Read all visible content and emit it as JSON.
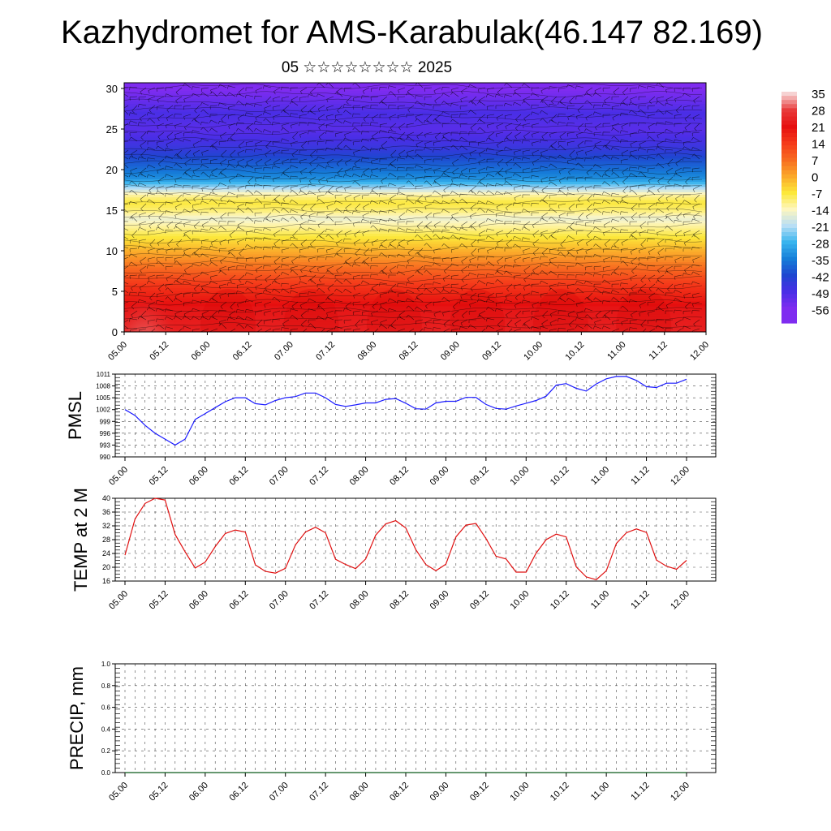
{
  "header": {
    "title": "Kazhydromet for AMS-Karabulak(46.147 82.169)",
    "subtitle": "05 ☆☆☆☆☆☆☆☆ 2025"
  },
  "chart_data": [
    {
      "type": "heatmap",
      "name": "vertical-section",
      "title": "Kazhydromet for AMS-Karabulak(46.147 82.169)",
      "subtitle": "05 ☆☆☆☆☆☆☆☆ 2025",
      "xlabel": "",
      "ylabel": "",
      "x_ticks": [
        "05.00",
        "05.12",
        "06.00",
        "06.12",
        "07.00",
        "07.12",
        "08.00",
        "08.12",
        "09.00",
        "09.12",
        "10.00",
        "10.12",
        "11.00",
        "11.12",
        "12.00"
      ],
      "y_ticks": [
        0,
        5,
        10,
        15,
        20,
        25,
        30
      ],
      "ylim": [
        0,
        30.7
      ],
      "temperature_profile": {
        "height": [
          0,
          3,
          6,
          9,
          12,
          14,
          15,
          16,
          17,
          18,
          19,
          21,
          23,
          25,
          27,
          30.7
        ],
        "value": [
          24,
          22,
          14,
          3,
          -8,
          -16,
          -10,
          -7,
          -13,
          -24,
          -33,
          -40,
          -47,
          -51,
          -49,
          -58
        ]
      },
      "warm_core": {
        "x_center": "05.06",
        "height_top": 9,
        "peak": 38
      },
      "wind_barbs": true,
      "colorbar": {
        "labels": [
          "35",
          "28",
          "21",
          "14",
          "7",
          "0",
          "-7",
          "-14",
          "-21",
          "-28",
          "-35",
          "-42",
          "-49",
          "-56"
        ],
        "colors": [
          "#f6d2d2",
          "#e83a3a",
          "#e60f0f",
          "#f53a1a",
          "#f76b20",
          "#fba92a",
          "#fce83a",
          "#fdf6c0",
          "#b8def5",
          "#38b4ee",
          "#167ed8",
          "#1f46d0",
          "#4a2ee6",
          "#7f2cf0"
        ]
      }
    },
    {
      "type": "line",
      "name": "pmsl",
      "ylabel": "PMSL",
      "xlabel": "",
      "ylim": [
        990,
        1011
      ],
      "y_ticks": [
        990,
        993,
        996,
        999,
        1002,
        1005,
        1008,
        1011
      ],
      "x_ticks": [
        "05.00",
        "05.12",
        "06.00",
        "06.12",
        "07.00",
        "07.12",
        "08.00",
        "08.12",
        "09.00",
        "09.12",
        "10.00",
        "10.12",
        "11.00",
        "11.12",
        "12.00"
      ],
      "grid": true,
      "series": [
        {
          "color": "#1a1aff",
          "x": [
            0,
            3,
            6,
            9,
            12,
            15,
            18,
            21,
            24,
            27,
            30,
            33,
            36,
            39,
            42,
            45,
            48,
            51,
            54,
            57,
            60,
            63,
            66,
            69,
            72,
            75,
            78,
            81,
            84,
            87,
            90,
            93,
            96,
            99,
            102,
            105,
            108,
            111,
            114,
            117,
            120,
            123,
            126,
            129,
            132,
            135,
            138,
            141,
            144,
            147,
            150,
            153,
            156,
            159,
            162,
            165,
            168
          ],
          "values": [
            1002,
            1000.5,
            998,
            996,
            994.5,
            993,
            994.5,
            999.5,
            1001,
            1002.5,
            1004,
            1005,
            1005,
            1003.5,
            1003.2,
            1004.3,
            1005,
            1005.3,
            1006.2,
            1006.2,
            1005,
            1003.3,
            1002.8,
            1003.2,
            1003.7,
            1003.7,
            1004.6,
            1004.8,
            1003.6,
            1002.2,
            1002.1,
            1003.7,
            1004.1,
            1004.1,
            1005.1,
            1005.1,
            1003.3,
            1002.3,
            1002.1,
            1002.9,
            1003.6,
            1004.3,
            1005.4,
            1008.2,
            1008.6,
            1007.4,
            1006.7,
            1008.5,
            1009.8,
            1010.4,
            1010.4,
            1009.4,
            1007.8,
            1007.6,
            1008.7,
            1008.7,
            1009.7
          ]
        }
      ]
    },
    {
      "type": "line",
      "name": "temp-2m",
      "ylabel": "TEMP at 2 M",
      "xlabel": "",
      "ylim": [
        16,
        40
      ],
      "y_ticks": [
        16,
        20,
        24,
        28,
        32,
        36,
        40
      ],
      "x_ticks": [
        "05.00",
        "05.12",
        "06.00",
        "06.12",
        "07.00",
        "07.12",
        "08.00",
        "08.12",
        "09.00",
        "09.12",
        "10.00",
        "10.12",
        "11.00",
        "11.12",
        "12.00"
      ],
      "grid": true,
      "series": [
        {
          "color": "#e01010",
          "x": [
            0,
            3,
            6,
            9,
            12,
            15,
            18,
            21,
            24,
            27,
            30,
            33,
            36,
            39,
            42,
            45,
            48,
            51,
            54,
            57,
            60,
            63,
            66,
            69,
            72,
            75,
            78,
            81,
            84,
            87,
            90,
            93,
            96,
            99,
            102,
            105,
            108,
            111,
            114,
            117,
            120,
            123,
            126,
            129,
            132,
            135,
            138,
            141,
            144,
            147,
            150,
            153,
            156,
            159,
            162,
            165,
            168
          ],
          "values": [
            23.5,
            34,
            38.5,
            40,
            39.5,
            29.5,
            24.5,
            19.8,
            21.5,
            26,
            29.8,
            30.8,
            30.2,
            20.7,
            18.8,
            18.3,
            19.7,
            26.5,
            30.2,
            31.6,
            30,
            22.3,
            20.8,
            19.6,
            22.4,
            29.3,
            32.6,
            33.5,
            31.4,
            25.1,
            20.8,
            19,
            20.9,
            28.8,
            32.2,
            32.7,
            28.3,
            23.2,
            22.4,
            18.6,
            18.6,
            24.1,
            28,
            29.6,
            28.8,
            20.1,
            17.2,
            16.4,
            19,
            26.9,
            30,
            31.1,
            30.1,
            22.1,
            20.3,
            19.4,
            22
          ]
        }
      ]
    },
    {
      "type": "line",
      "name": "precip",
      "ylabel": "PRECIP, mm",
      "xlabel": "",
      "ylim": [
        0,
        1.0
      ],
      "y_ticks": [
        "0.0",
        "0.2",
        "0.4",
        "0.6",
        "0.8",
        "1.0"
      ],
      "x_ticks": [
        "05.00",
        "05.12",
        "06.00",
        "06.12",
        "07.00",
        "07.12",
        "08.00",
        "08.12",
        "09.00",
        "09.12",
        "10.00",
        "10.12",
        "11.00",
        "11.12",
        "12.00"
      ],
      "grid": true,
      "series": [
        {
          "color": "#0a5a1a",
          "x": [
            0,
            6,
            12,
            18,
            24,
            30,
            36,
            42,
            48,
            54,
            60,
            66,
            72,
            78,
            84,
            90,
            96,
            102,
            108,
            114,
            120,
            126,
            132,
            138,
            144,
            150,
            156,
            162,
            168
          ],
          "values": [
            0,
            0,
            0,
            0,
            0,
            0,
            0,
            0,
            0,
            0,
            0,
            0,
            0,
            0,
            0,
            0,
            0,
            0,
            0,
            0,
            0,
            0,
            0,
            0,
            0,
            0,
            0,
            0,
            0
          ]
        }
      ]
    }
  ]
}
